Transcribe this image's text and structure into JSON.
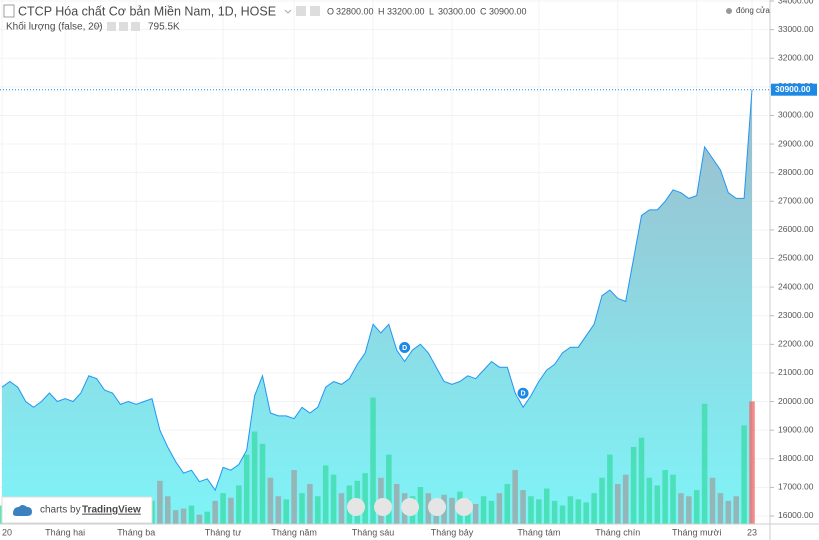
{
  "chart_data": {
    "type": "area",
    "title": "CTCP Hóa chất Cơ bản Miền Nam, 1D, HOSE",
    "ohlc": [
      {
        "name": "O",
        "value": 32800,
        "value_label": "32800.00"
      },
      {
        "name": "H",
        "value": 33200,
        "value_label": "33200.00"
      },
      {
        "name": "L",
        "value": 30300,
        "value_label": "30300.00"
      },
      {
        "name": "C",
        "value": 30900,
        "value_label": "30900.00"
      }
    ],
    "indicator": "Khối lượng (false, 20)",
    "legend_text": "đóng cửa",
    "branding": {
      "prefix": "charts by",
      "name": "TradingView"
    },
    "categories": [
      "20",
      null,
      null,
      null,
      null,
      null,
      null,
      null,
      "Tháng hai",
      null,
      null,
      null,
      null,
      null,
      null,
      null,
      null,
      "Tháng ba",
      null,
      null,
      null,
      null,
      null,
      null,
      null,
      null,
      null,
      null,
      "Tháng tư",
      null,
      null,
      null,
      null,
      null,
      null,
      null,
      null,
      "Tháng năm",
      null,
      null,
      null,
      null,
      null,
      null,
      null,
      null,
      null,
      "Tháng sáu",
      null,
      null,
      null,
      null,
      null,
      null,
      null,
      null,
      null,
      "Tháng bảy",
      null,
      null,
      null,
      null,
      null,
      null,
      null,
      null,
      null,
      null,
      "Tháng tám",
      null,
      null,
      null,
      null,
      null,
      null,
      null,
      null,
      null,
      "Tháng chín",
      null,
      null,
      null,
      null,
      null,
      null,
      null,
      null,
      null,
      "Tháng mười",
      null,
      null,
      null,
      null,
      null,
      null,
      "23"
    ],
    "series": [
      {
        "name": "đóng cửa",
        "color": "#2196f3",
        "fill_top": "#9dbccc",
        "fill_bottom": "#7ef4f8",
        "values": [
          20500,
          20700,
          20500,
          20000,
          19800,
          20000,
          20300,
          20000,
          20100,
          20000,
          20300,
          20900,
          20800,
          20400,
          20300,
          19900,
          20000,
          19900,
          20000,
          20100,
          19000,
          18400,
          17900,
          17500,
          17600,
          17200,
          17300,
          16900,
          17700,
          17600,
          17800,
          18300,
          20200,
          20900,
          19600,
          19500,
          19500,
          19400,
          19800,
          19600,
          19800,
          20500,
          20700,
          20600,
          20800,
          21300,
          21700,
          22700,
          22400,
          22700,
          21800,
          21400,
          21800,
          22000,
          21700,
          21200,
          20700,
          20600,
          20700,
          20900,
          20800,
          21100,
          21400,
          21200,
          21200,
          20300,
          19800,
          20200,
          20700,
          21100,
          21300,
          21700,
          21900,
          21900,
          22300,
          22700,
          23700,
          23900,
          23600,
          23500,
          25000,
          26500,
          26700,
          26700,
          27000,
          27400,
          27300,
          27100,
          27200,
          28900,
          28500,
          28100,
          27300,
          27100,
          27100,
          30900
        ]
      },
      {
        "name": "Khối lượng",
        "axis": "y2",
        "up_color": "#3ddcaa",
        "down_color": "#9aa6a8",
        "last_color": "#f06b6b",
        "values": [
          120000,
          90000,
          150000,
          80000,
          100000,
          70000,
          130000,
          90000,
          110000,
          160000,
          140000,
          100000,
          80000,
          120000,
          90000,
          100000,
          70000,
          130000,
          110000,
          150000,
          280000,
          180000,
          90000,
          100000,
          120000,
          60000,
          80000,
          150000,
          200000,
          170000,
          250000,
          450000,
          600000,
          520000,
          300000,
          180000,
          160000,
          350000,
          200000,
          260000,
          180000,
          380000,
          320000,
          200000,
          250000,
          280000,
          330000,
          820000,
          300000,
          450000,
          260000,
          200000,
          180000,
          240000,
          200000,
          150000,
          190000,
          170000,
          210000,
          160000,
          130000,
          180000,
          150000,
          200000,
          260000,
          350000,
          220000,
          180000,
          160000,
          230000,
          150000,
          120000,
          180000,
          160000,
          140000,
          200000,
          300000,
          450000,
          260000,
          320000,
          500000,
          560000,
          300000,
          250000,
          350000,
          320000,
          200000,
          180000,
          220000,
          780000,
          300000,
          200000,
          150000,
          180000,
          640000,
          795500
        ],
        "value_labels": [
          null,
          null,
          null,
          null,
          null,
          null,
          null,
          null,
          null,
          null,
          null,
          null,
          null,
          null,
          null,
          null,
          null,
          null,
          null,
          null,
          null,
          null,
          null,
          null,
          null,
          null,
          null,
          null,
          null,
          null,
          null,
          null,
          null,
          null,
          null,
          null,
          null,
          null,
          null,
          null,
          null,
          null,
          null,
          null,
          null,
          null,
          null,
          null,
          null,
          null,
          null,
          null,
          null,
          null,
          null,
          null,
          null,
          null,
          null,
          null,
          null,
          null,
          null,
          null,
          null,
          null,
          null,
          null,
          null,
          null,
          null,
          null,
          null,
          null,
          null,
          null,
          null,
          null,
          null,
          null,
          null,
          null,
          null,
          null,
          null,
          null,
          null,
          null,
          null,
          null,
          null,
          null,
          null,
          null,
          null,
          "795.5K"
        ]
      }
    ],
    "events": [
      {
        "label": "D",
        "index": 51
      },
      {
        "label": "D",
        "index": 66
      }
    ],
    "price_line": {
      "value": 30900,
      "label": "30900.00",
      "color": "#1e88e5"
    },
    "ylim": [
      15720,
      34035
    ],
    "y2lim": [
      0,
      3400000
    ],
    "yticks": [
      {
        "value": 16000,
        "label": "16000.00"
      },
      {
        "value": 17000,
        "label": "17000.00"
      },
      {
        "value": 18000,
        "label": "18000.00"
      },
      {
        "value": 19000,
        "label": "19000.00"
      },
      {
        "value": 20000,
        "label": "20000.00"
      },
      {
        "value": 21000,
        "label": "21000.00"
      },
      {
        "value": 22000,
        "label": "22000.00"
      },
      {
        "value": 23000,
        "label": "23000.00"
      },
      {
        "value": 24000,
        "label": "24000.00"
      },
      {
        "value": 25000,
        "label": "25000.00"
      },
      {
        "value": 26000,
        "label": "26000.00"
      },
      {
        "value": 27000,
        "label": "27000.00"
      },
      {
        "value": 28000,
        "label": "28000.00"
      },
      {
        "value": 29000,
        "label": "29000.00"
      },
      {
        "value": 30000,
        "label": "30000.00"
      },
      {
        "value": 31000,
        "label": "31000.00"
      },
      {
        "value": 32000,
        "label": "32000.00"
      },
      {
        "value": 33000,
        "label": "33000.00"
      },
      {
        "value": 34000,
        "label": "34000.00"
      }
    ],
    "grid": true
  }
}
